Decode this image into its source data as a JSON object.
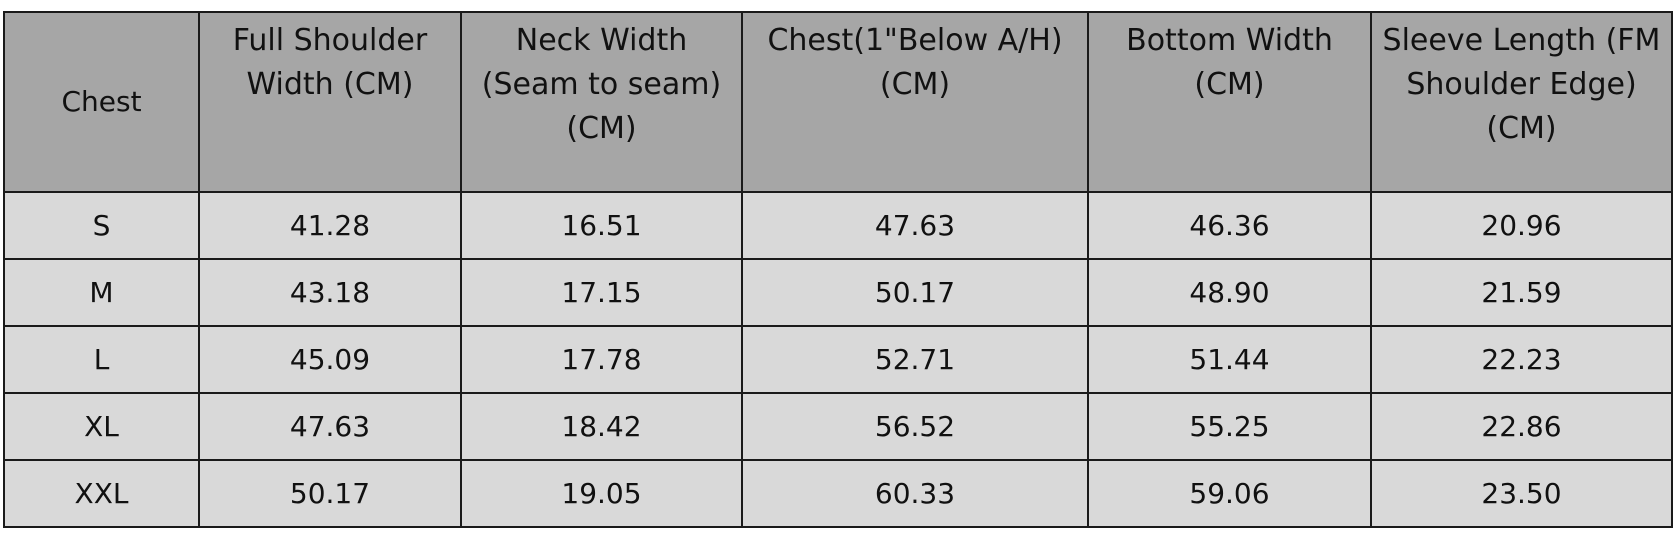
{
  "table": {
    "header": [
      [
        "Chest"
      ],
      [
        "Full Shoulder",
        "Width (CM)"
      ],
      [
        "Neck Width",
        "(Seam to seam)",
        "(CM)"
      ],
      [
        "Chest(1\"Below A/H)",
        "(CM)"
      ],
      [
        "Bottom Width",
        "(CM)"
      ],
      [
        "Sleeve Length (FM",
        "Shoulder Edge)",
        "(CM)"
      ]
    ],
    "rows": [
      [
        "S",
        "41.28",
        "16.51",
        "47.63",
        "46.36",
        "20.96"
      ],
      [
        "M",
        "43.18",
        "17.15",
        "50.17",
        "48.90",
        "21.59"
      ],
      [
        "L",
        "45.09",
        "17.78",
        "52.71",
        "51.44",
        "22.23"
      ],
      [
        "XL",
        "47.63",
        "18.42",
        "56.52",
        "55.25",
        "22.86"
      ],
      [
        "XXL",
        "50.17",
        "19.05",
        "60.33",
        "59.06",
        "23.50"
      ]
    ]
  }
}
